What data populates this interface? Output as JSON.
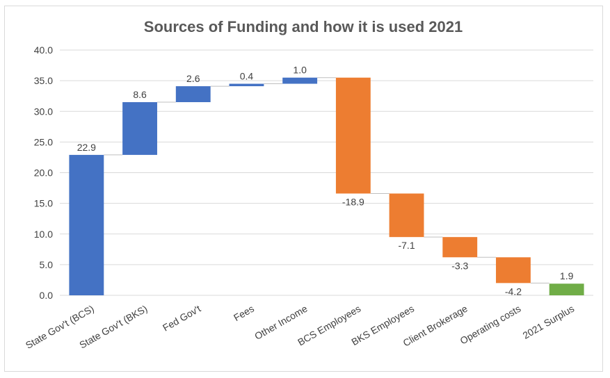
{
  "chart_data": {
    "type": "bar",
    "subtype": "waterfall",
    "title": "Sources of Funding and how it is used 2021",
    "xlabel": "",
    "ylabel": "",
    "ylim": [
      0,
      40
    ],
    "yticks": [
      "0.0",
      "5.0",
      "10.0",
      "15.0",
      "20.0",
      "25.0",
      "30.0",
      "35.0",
      "40.0"
    ],
    "grid": true,
    "legend": "none",
    "categories": [
      "State Gov't (BCS)",
      "State Gov't (BKS)",
      "Fed Gov't",
      "Fees",
      "Other Income",
      "BCS Employees",
      "BKS Employees",
      "Client Brokerage",
      "Operating costs",
      "2021 Surplus"
    ],
    "values": [
      22.9,
      8.6,
      2.6,
      0.4,
      1.0,
      -18.9,
      -7.1,
      -3.3,
      -4.2,
      1.9
    ],
    "data_labels": [
      "22.9",
      "8.6",
      "2.6",
      "0.4",
      "1.0",
      "-18.9",
      "-7.1",
      "-3.3",
      "-4.2",
      "1.9"
    ],
    "kinds": [
      "increase",
      "increase",
      "increase",
      "increase",
      "increase",
      "decrease",
      "decrease",
      "decrease",
      "decrease",
      "total"
    ],
    "colors": {
      "increase": "#4472c4",
      "decrease": "#ed7d31",
      "total": "#70ad47",
      "grid": "#d9d9d9",
      "connector": "#bfbfbf"
    }
  }
}
